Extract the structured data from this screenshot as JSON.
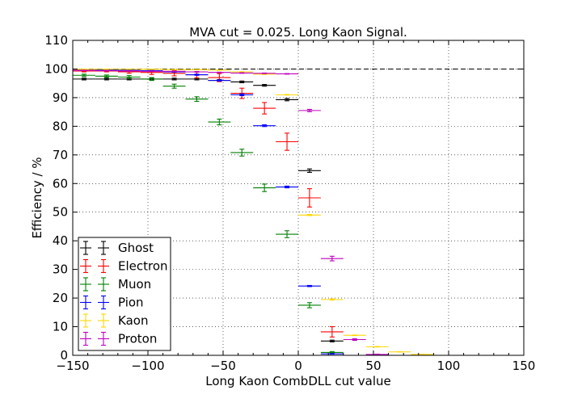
{
  "chart_data": {
    "type": "scatter",
    "title": "MVA cut = 0.025. Long Kaon Signal.",
    "xlabel": "Long Kaon CombDLL cut value",
    "ylabel": "Efficiency / %",
    "xlim": [
      -150,
      150
    ],
    "ylim": [
      0,
      110
    ],
    "xticks": [
      "−150",
      "−100",
      "−50",
      "0",
      "50",
      "100",
      "150"
    ],
    "xtick_values": [
      -150,
      -100,
      -50,
      0,
      50,
      100,
      150
    ],
    "yticks": [
      "0",
      "10",
      "20",
      "30",
      "40",
      "50",
      "60",
      "70",
      "80",
      "90",
      "100",
      "110"
    ],
    "ytick_values": [
      0,
      10,
      20,
      30,
      40,
      50,
      60,
      70,
      80,
      90,
      100,
      110
    ],
    "grid": true,
    "reference_line": 100,
    "legend_position": "lower-left",
    "x_bins": [
      -142.5,
      -127.5,
      -112.5,
      -97.5,
      -82.5,
      -67.5,
      -52.5,
      -37.5,
      -22.5,
      -7.5,
      7.5,
      22.5,
      37.5,
      52.5,
      67.5,
      82.5
    ],
    "x_halfwidth": 7.5,
    "series": [
      {
        "name": "Ghost",
        "color": "#000000",
        "x": [
          -142.5,
          -127.5,
          -112.5,
          -97.5,
          -82.5,
          -67.5,
          -52.5,
          -37.5,
          -22.5,
          -7.5,
          7.5,
          22.5
        ],
        "y": [
          96.5,
          96.5,
          96.5,
          96.5,
          96.5,
          96.5,
          96.0,
          95.5,
          94.3,
          89.3,
          64.5,
          5.0
        ],
        "err": [
          0.3,
          0.3,
          0.3,
          0.3,
          0.3,
          0.3,
          0.3,
          0.3,
          0.3,
          0.4,
          0.6,
          0.3
        ]
      },
      {
        "name": "Electron",
        "color": "#ff0000",
        "x": [
          -142.5,
          -127.5,
          -112.5,
          -97.5,
          -82.5,
          -67.5,
          -52.5,
          -37.5,
          -22.5,
          -7.5,
          7.5,
          22.5
        ],
        "y": [
          99.3,
          99.3,
          99.0,
          98.8,
          98.5,
          98.0,
          97.0,
          91.5,
          86.3,
          74.6,
          55.0,
          8.2
        ],
        "err": [
          0.3,
          0.3,
          0.5,
          0.7,
          0.9,
          1.1,
          1.4,
          1.8,
          2.0,
          3.0,
          3.2,
          1.8
        ]
      },
      {
        "name": "Muon",
        "color": "#008000",
        "x": [
          -142.5,
          -127.5,
          -112.5,
          -97.5,
          -82.5,
          -67.5,
          -52.5,
          -37.5,
          -22.5,
          -7.5,
          7.5,
          22.5
        ],
        "y": [
          97.8,
          97.5,
          97.2,
          96.5,
          94.0,
          89.5,
          81.5,
          70.8,
          58.5,
          42.3,
          17.5,
          1.0
        ],
        "err": [
          0.4,
          0.4,
          0.5,
          0.5,
          0.7,
          0.8,
          1.0,
          1.2,
          1.3,
          1.2,
          0.9,
          0.3
        ]
      },
      {
        "name": "Pion",
        "color": "#0000ff",
        "x": [
          -142.5,
          -127.5,
          -112.5,
          -97.5,
          -82.5,
          -67.5,
          -52.5,
          -37.5,
          -22.5,
          -7.5,
          7.5,
          22.5
        ],
        "y": [
          99.8,
          99.7,
          99.6,
          99.4,
          99.0,
          98.0,
          96.0,
          91.0,
          80.2,
          58.8,
          24.2,
          0.5
        ],
        "err": [
          0.1,
          0.1,
          0.1,
          0.1,
          0.1,
          0.2,
          0.2,
          0.3,
          0.3,
          0.3,
          0.2,
          0.1
        ]
      },
      {
        "name": "Kaon",
        "color": "#ffd700",
        "x": [
          -142.5,
          -127.5,
          -112.5,
          -97.5,
          -82.5,
          -67.5,
          -52.5,
          -37.5,
          -22.5,
          -7.5,
          7.5,
          22.5,
          37.5,
          52.5,
          67.5,
          82.5
        ],
        "y": [
          99.9,
          99.9,
          99.9,
          99.9,
          99.8,
          99.8,
          99.6,
          99.0,
          98.2,
          91.0,
          49.0,
          19.5,
          7.0,
          3.0,
          1.2,
          0.3
        ],
        "err": [
          0.05,
          0.05,
          0.05,
          0.05,
          0.05,
          0.05,
          0.05,
          0.05,
          0.1,
          0.1,
          0.2,
          0.2,
          0.1,
          0.1,
          0.05,
          0.05
        ]
      },
      {
        "name": "Proton",
        "color": "#bf00bf",
        "x": [
          -142.5,
          -127.5,
          -112.5,
          -97.5,
          -82.5,
          -67.5,
          -52.5,
          -37.5,
          -22.5,
          -7.5,
          7.5,
          22.5,
          37.5,
          52.5
        ],
        "y": [
          99.5,
          99.4,
          99.3,
          99.2,
          99.2,
          99.0,
          98.8,
          98.6,
          98.5,
          98.3,
          85.5,
          33.8,
          5.5,
          0.3
        ],
        "err": [
          0.1,
          0.1,
          0.1,
          0.1,
          0.1,
          0.1,
          0.1,
          0.1,
          0.1,
          0.1,
          0.4,
          0.8,
          0.3,
          0.1
        ]
      }
    ]
  }
}
